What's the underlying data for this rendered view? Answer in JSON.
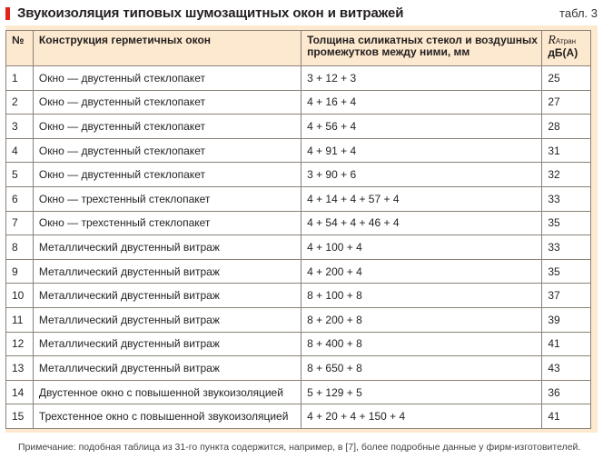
{
  "header": {
    "title": "Звукоизоляция типовых шумозащитных окон и витражей",
    "table_number": "табл. 3"
  },
  "table": {
    "columns": {
      "num": "№",
      "construction": "Конструкция герметичных окон",
      "thickness": "Толщина силикатных стекол и воздушных промежутков между ними, мм",
      "r_symbol": "R",
      "r_subscript": "Атран",
      "r_unit": "дБ(А)"
    },
    "rows": [
      {
        "n": "1",
        "construction": "Окно — двустенный стеклопакет",
        "thickness": "3 + 12 + 3",
        "r": "25"
      },
      {
        "n": "2",
        "construction": "Окно — двустенный стеклопакет",
        "thickness": "4 + 16 + 4",
        "r": "27"
      },
      {
        "n": "3",
        "construction": "Окно — двустенный стеклопакет",
        "thickness": "4 + 56 + 4",
        "r": "28"
      },
      {
        "n": "4",
        "construction": "Окно — двустенный стеклопакет",
        "thickness": "4 + 91 + 4",
        "r": "31"
      },
      {
        "n": "5",
        "construction": "Окно — двустенный стеклопакет",
        "thickness": "3 + 90 + 6",
        "r": "32"
      },
      {
        "n": "6",
        "construction": "Окно — трехстенный стеклопакет",
        "thickness": "4 + 14 + 4 + 57 + 4",
        "r": "33"
      },
      {
        "n": "7",
        "construction": "Окно — трехстенный стеклопакет",
        "thickness": "4 + 54 + 4 + 46 + 4",
        "r": "35"
      },
      {
        "n": "8",
        "construction": "Металлический двустенный витраж",
        "thickness": "4 + 100 + 4",
        "r": "33"
      },
      {
        "n": "9",
        "construction": "Металлический двустенный витраж",
        "thickness": "4 + 200 + 4",
        "r": "35"
      },
      {
        "n": "10",
        "construction": "Металлический двустенный витраж",
        "thickness": "8 + 100 + 8",
        "r": "37"
      },
      {
        "n": "11",
        "construction": "Металлический двустенный витраж",
        "thickness": "8 + 200 + 8",
        "r": "39"
      },
      {
        "n": "12",
        "construction": "Металлический двустенный витраж",
        "thickness": "8 + 400 + 8",
        "r": "41"
      },
      {
        "n": "13",
        "construction": "Металлический двустенный витраж",
        "thickness": "8 + 650 + 8",
        "r": "43"
      },
      {
        "n": "14",
        "construction": "Двустенное окно с повышенной звукоизоляцией",
        "thickness": "5 + 129 + 5",
        "r": "36"
      },
      {
        "n": "15",
        "construction": "Трехстенное окно с повышенной звукоизоляцией",
        "thickness": "4 + 20 + 4 + 150 + 4",
        "r": "41"
      }
    ]
  },
  "note": "Примечание: подобная таблица из 31-го пункта содержится, например, в [7], более подробные данные у фирм-изготовителей.",
  "colors": {
    "accent": "#e2231a",
    "panel": "#fde9cf",
    "border": "#8a8178"
  }
}
